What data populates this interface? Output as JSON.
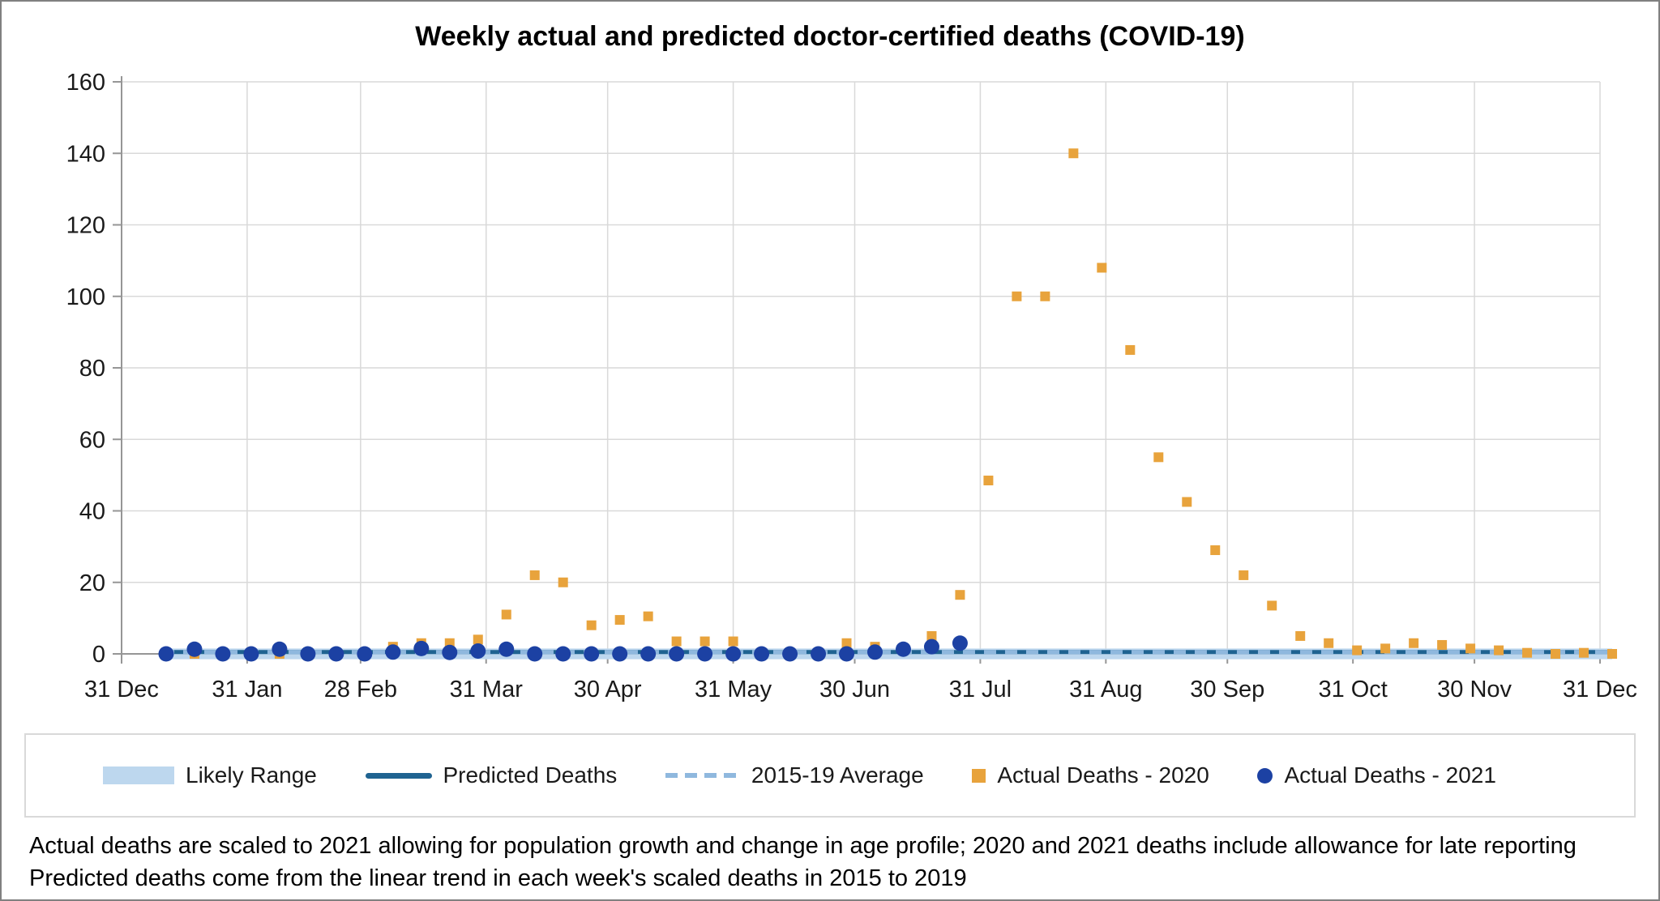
{
  "title": "Weekly actual and predicted doctor-certified deaths (COVID-19)",
  "footnotes": {
    "line1": "Actual deaths are scaled to 2021 allowing for population growth and change in age profile; 2020 and 2021 deaths include allowance for late reporting",
    "line2": "Predicted deaths come from the linear trend in each week's scaled deaths in 2015 to 2019"
  },
  "chart_data": {
    "type": "scatter",
    "title": "Weekly actual and predicted doctor-certified deaths (COVID-19)",
    "grid": true,
    "legend_position": "bottom",
    "style": {
      "grid_color": "#D9D9D9",
      "axis_color": "#969696",
      "tick_label_color": "#1a1a1a"
    },
    "y_axis": {
      "ticks": [
        0,
        20,
        40,
        60,
        80,
        100,
        120,
        140,
        160
      ],
      "range": [
        0,
        160
      ]
    },
    "x_axis": {
      "tick_labels": [
        "31 Dec",
        "31 Jan",
        "28 Feb",
        "31 Mar",
        "30 Apr",
        "31 May",
        "30 Jun",
        "31 Jul",
        "31 Aug",
        "30 Sep",
        "31 Oct",
        "30 Nov",
        "31 Dec"
      ],
      "tick_days": [
        0,
        31,
        59,
        90,
        120,
        151,
        181,
        212,
        243,
        273,
        304,
        334,
        365
      ],
      "range_days": [
        0,
        365
      ]
    },
    "series": [
      {
        "name": "Likely Range",
        "type": "band",
        "color": "#BDD7EE",
        "x0_day": 10,
        "x1_day": 368,
        "low": -1.5,
        "high": 1.5
      },
      {
        "name": "Predicted Deaths",
        "type": "line",
        "color": "#1F6391",
        "x0_day": 10,
        "x1_day": 368,
        "value": 0.5
      },
      {
        "name": "2015-19 Average",
        "type": "dashed",
        "color": "#8FB8DE",
        "x0_day": 10,
        "x1_day": 368,
        "value": 0.5
      },
      {
        "name": "Actual Deaths - 2020",
        "type": "squares",
        "color": "#E8A33C",
        "start_day": 11,
        "step_days": 7,
        "values": [
          0,
          0,
          0,
          0,
          0,
          0,
          0,
          0,
          2,
          3,
          3,
          4,
          11,
          22,
          20,
          8,
          9.5,
          10.5,
          3.5,
          3.5,
          3.5,
          0,
          0,
          0,
          3,
          2,
          1,
          5,
          16.5,
          48.5,
          100,
          100,
          140,
          108,
          85,
          55,
          42.5,
          29,
          22,
          13.5,
          5,
          3,
          1,
          1.5,
          3,
          2.5,
          1.5,
          1,
          0.3,
          0,
          0.3,
          0
        ]
      },
      {
        "name": "Actual Deaths - 2021",
        "type": "circles",
        "color": "#1C41A3",
        "start_day": 11,
        "step_days": 7,
        "values": [
          0,
          1.3,
          0,
          0,
          1.3,
          0,
          0,
          0,
          0.5,
          1.5,
          0.4,
          0.8,
          1.3,
          0,
          0,
          0,
          0,
          0,
          0,
          0,
          0,
          0,
          0,
          0,
          0,
          0.5,
          1.3,
          2,
          3
        ]
      }
    ]
  }
}
